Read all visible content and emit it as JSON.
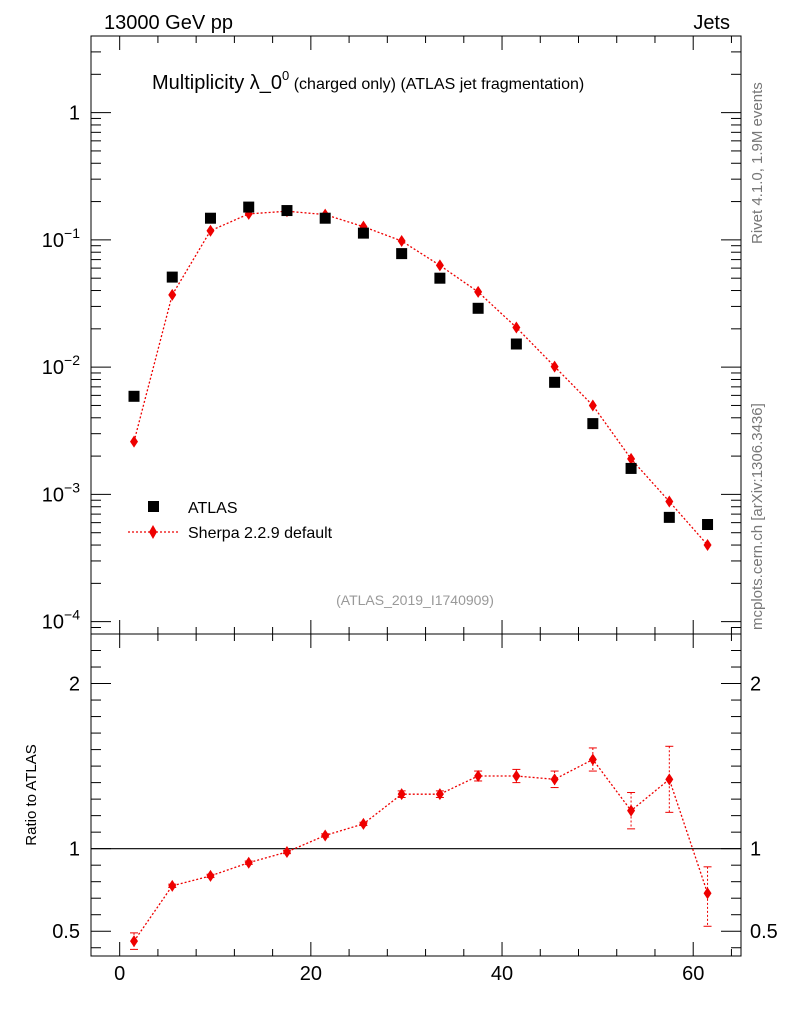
{
  "header": {
    "left": "13000 GeV pp",
    "right": "Jets"
  },
  "side": {
    "top": "Rivet 4.1.0,  1.9M events",
    "bottom": "mcplots.cern.ch [arXiv:1306.3436]"
  },
  "chart_data": [
    {
      "type": "scatter",
      "title_main": "Multiplicity λ_0",
      "title_sup": "0",
      "title_rest": " (charged only) (ATLAS jet fragmentation)",
      "analysis_label": "(ATLAS_2019_I1740909)",
      "yscale": "log",
      "xlim": [
        -3,
        65
      ],
      "ylim": [
        8e-05,
        4
      ],
      "y_tick_labels": [
        {
          "base": "10",
          "exp": "−4",
          "value": 0.0001
        },
        {
          "base": "10",
          "exp": "−3",
          "value": 0.001
        },
        {
          "base": "10",
          "exp": "−2",
          "value": 0.01
        },
        {
          "base": "10",
          "exp": "−1",
          "value": 0.1
        },
        {
          "base": "1",
          "exp": "",
          "value": 1
        }
      ],
      "legend": [
        "ATLAS",
        "Sherpa 2.2.9 default"
      ],
      "legend_position": "bottom-left",
      "x": [
        1.5,
        5.5,
        9.5,
        13.5,
        17.5,
        21.5,
        25.5,
        29.5,
        33.5,
        37.5,
        41.5,
        45.5,
        49.5,
        53.5,
        57.5,
        61.5
      ],
      "series": [
        {
          "name": "ATLAS",
          "color": "#000000",
          "marker": "square",
          "values": [
            0.0059,
            0.051,
            0.148,
            0.181,
            0.17,
            0.148,
            0.113,
            0.078,
            0.05,
            0.029,
            0.0152,
            0.0076,
            0.0036,
            0.0016,
            0.00066,
            0.00058
          ]
        },
        {
          "name": "Sherpa 2.2.9 default",
          "color": "#ee0000",
          "marker": "diamond",
          "line": "dotted",
          "values": [
            0.0026,
            0.037,
            0.118,
            0.16,
            0.168,
            0.158,
            0.127,
            0.098,
            0.063,
            0.039,
            0.0205,
            0.0101,
            0.005,
            0.0019,
            0.00088,
            0.0004
          ]
        }
      ]
    },
    {
      "type": "scatter",
      "ylabel": "Ratio to ATLAS",
      "xlim": [
        -3,
        65
      ],
      "ylim": [
        0.35,
        2.3
      ],
      "x_tick_labels": [
        "0",
        "20",
        "40",
        "60"
      ],
      "x_tick_values": [
        0,
        20,
        40,
        60
      ],
      "y_tick_labels": [
        "0.5",
        "1",
        "2"
      ],
      "y_tick_values": [
        0.5,
        1,
        2
      ],
      "reference_line": 1,
      "x": [
        1.5,
        5.5,
        9.5,
        13.5,
        17.5,
        21.5,
        25.5,
        29.5,
        33.5,
        37.5,
        41.5,
        45.5,
        49.5,
        53.5,
        57.5,
        61.5
      ],
      "series": [
        {
          "name": "Sherpa 2.2.9 default",
          "color": "#ee0000",
          "marker": "diamond",
          "line": "dotted",
          "values": [
            0.44,
            0.775,
            0.835,
            0.915,
            0.98,
            1.08,
            1.15,
            1.33,
            1.33,
            1.44,
            1.44,
            1.42,
            1.54,
            1.23,
            1.42,
            0.73
          ],
          "err_low": [
            0.05,
            0.01,
            0.01,
            0.01,
            0.01,
            0.01,
            0.01,
            0.02,
            0.02,
            0.03,
            0.04,
            0.05,
            0.07,
            0.11,
            0.2,
            0.2
          ],
          "err_high": [
            0.05,
            0.01,
            0.01,
            0.01,
            0.01,
            0.01,
            0.01,
            0.02,
            0.02,
            0.03,
            0.04,
            0.05,
            0.07,
            0.11,
            0.2,
            0.16
          ]
        }
      ]
    }
  ]
}
